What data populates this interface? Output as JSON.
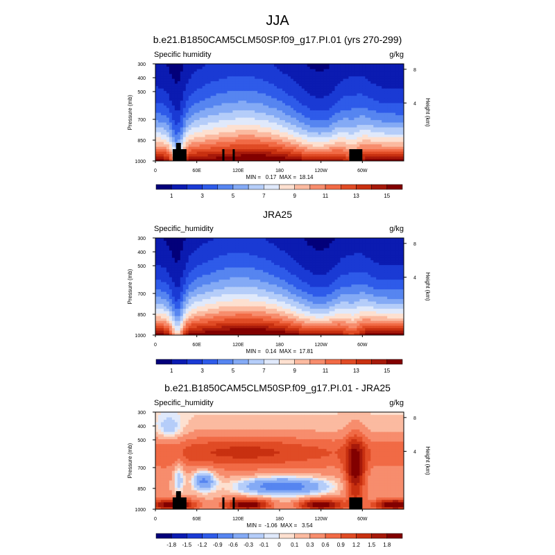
{
  "figure_title": "JJA",
  "chart_data": [
    {
      "type": "heatmap",
      "panel": "model",
      "title": "b.e21.B1850CAM5CLM50SP.f09_g17.PI.01 (yrs 270-299)",
      "left_label": "Specific humidity",
      "units": "g/kg",
      "xlabel": "",
      "ylabel": "Pressure (mb)",
      "y2label": "Height (km)",
      "x_ticks": [
        "0",
        "60E",
        "120E",
        "180",
        "120W",
        "60W"
      ],
      "x_tick_values": [
        0,
        60,
        120,
        180,
        240,
        300
      ],
      "xlim": [
        0,
        360
      ],
      "y_ticks": [
        "300",
        "400",
        "500",
        "700",
        "850",
        "1000"
      ],
      "y_tick_values": [
        300,
        400,
        500,
        700,
        850,
        1000
      ],
      "ylim": [
        1000,
        300
      ],
      "y2_ticks": [
        "8",
        "4"
      ],
      "y2_tick_values": [
        8,
        4
      ],
      "stats": "MIN =   0.17  MAX =  18.14",
      "min": 0.17,
      "max": 18.14,
      "colorbar_levels": [
        0,
        1,
        2,
        3,
        4,
        5,
        6,
        7,
        8,
        9,
        10,
        11,
        12,
        13,
        14,
        15,
        16
      ],
      "colorbar_labels": [
        "1",
        "3",
        "5",
        "7",
        "9",
        "11",
        "13",
        "15"
      ],
      "colorbar_colors": [
        "#03007a",
        "#0b1bb1",
        "#1a3ad4",
        "#2e5be9",
        "#5685f0",
        "#84aaf5",
        "#b5cdf9",
        "#e0e9fb",
        "#fde0d0",
        "#fbbaa0",
        "#f78d6d",
        "#f16a45",
        "#e04b25",
        "#c83010",
        "#a6190a",
        "#820000"
      ],
      "field_model": "abs",
      "topography": [
        [
          0,
          0,
          0
        ],
        [
          25,
          1000,
          0
        ],
        [
          30,
          920,
          1
        ],
        [
          33,
          870,
          1
        ],
        [
          38,
          920,
          1
        ],
        [
          45,
          1000,
          0
        ],
        [
          95,
          1000,
          0
        ],
        [
          97,
          920,
          0
        ],
        [
          99,
          1000,
          0
        ],
        [
          110,
          1000,
          0
        ],
        [
          112,
          920,
          0
        ],
        [
          114,
          1000,
          0
        ],
        [
          280,
          1000,
          0
        ],
        [
          282,
          920,
          0
        ],
        [
          298,
          920,
          0
        ],
        [
          300,
          1000,
          0
        ]
      ]
    },
    {
      "type": "heatmap",
      "panel": "obs",
      "title": "JRA25",
      "left_label": "Specific_humidity",
      "units": "g/kg",
      "xlabel": "",
      "ylabel": "Pressure (mb)",
      "y2label": "Height (km)",
      "x_ticks": [
        "0",
        "60E",
        "120E",
        "180",
        "120W",
        "60W"
      ],
      "x_tick_values": [
        0,
        60,
        120,
        180,
        240,
        300
      ],
      "xlim": [
        0,
        360
      ],
      "y_ticks": [
        "300",
        "400",
        "500",
        "700",
        "850",
        "1000"
      ],
      "y_tick_values": [
        300,
        400,
        500,
        700,
        850,
        1000
      ],
      "ylim": [
        1000,
        300
      ],
      "y2_ticks": [
        "8",
        "4"
      ],
      "y2_tick_values": [
        8,
        4
      ],
      "stats": "MIN =   0.14  MAX =  17.81",
      "min": 0.14,
      "max": 17.81,
      "colorbar_levels": [
        0,
        1,
        2,
        3,
        4,
        5,
        6,
        7,
        8,
        9,
        10,
        11,
        12,
        13,
        14,
        15,
        16
      ],
      "colorbar_labels": [
        "1",
        "3",
        "5",
        "7",
        "9",
        "11",
        "13",
        "15"
      ],
      "colorbar_colors": [
        "#03007a",
        "#0b1bb1",
        "#1a3ad4",
        "#2e5be9",
        "#5685f0",
        "#84aaf5",
        "#b5cdf9",
        "#e0e9fb",
        "#fde0d0",
        "#fbbaa0",
        "#f78d6d",
        "#f16a45",
        "#e04b25",
        "#c83010",
        "#a6190a",
        "#820000"
      ],
      "field_model": "abs_obs",
      "topography": []
    },
    {
      "type": "heatmap",
      "panel": "difference",
      "title": "b.e21.B1850CAM5CLM50SP.f09_g17.PI.01 - JRA25",
      "left_label": "Specific_humidity",
      "units": "g/kg",
      "xlabel": "",
      "ylabel": "Pressure (mb)",
      "y2label": "Height (km)",
      "x_ticks": [
        "0",
        "60E",
        "120E",
        "180",
        "120W",
        "60W"
      ],
      "x_tick_values": [
        0,
        60,
        120,
        180,
        240,
        300
      ],
      "xlim": [
        0,
        360
      ],
      "y_ticks": [
        "300",
        "400",
        "500",
        "700",
        "850",
        "1000"
      ],
      "y_tick_values": [
        300,
        400,
        500,
        700,
        850,
        1000
      ],
      "ylim": [
        1000,
        300
      ],
      "y2_ticks": [
        "8",
        "4"
      ],
      "y2_tick_values": [
        8,
        4
      ],
      "stats": "MIN =  -1.06  MAX =   3.54",
      "min": -1.06,
      "max": 3.54,
      "colorbar_levels": [
        -2.1,
        -1.8,
        -1.5,
        -1.2,
        -0.9,
        -0.6,
        -0.3,
        -0.1,
        0,
        0.1,
        0.3,
        0.6,
        0.9,
        1.2,
        1.5,
        1.8,
        2.1
      ],
      "colorbar_labels": [
        "-1.8",
        "-1.5",
        "-1.2",
        "-0.9",
        "-0.6",
        "-0.3",
        "-0.1",
        "0",
        "0.1",
        "0.3",
        "0.6",
        "0.9",
        "1.2",
        "1.5",
        "1.8"
      ],
      "colorbar_colors": [
        "#03007a",
        "#0b1bb1",
        "#1a3ad4",
        "#2e5be9",
        "#5685f0",
        "#84aaf5",
        "#b5cdf9",
        "#e0e9fb",
        "#fde0d0",
        "#fbbaa0",
        "#f78d6d",
        "#f16a45",
        "#e04b25",
        "#c83010",
        "#a6190a",
        "#820000"
      ],
      "field_model": "diff",
      "topography": [
        [
          0,
          0,
          0
        ],
        [
          25,
          1000,
          0
        ],
        [
          30,
          920,
          1
        ],
        [
          33,
          870,
          1
        ],
        [
          38,
          920,
          1
        ],
        [
          45,
          1000,
          0
        ],
        [
          95,
          1000,
          0
        ],
        [
          97,
          920,
          0
        ],
        [
          99,
          1000,
          0
        ],
        [
          110,
          1000,
          0
        ],
        [
          112,
          920,
          0
        ],
        [
          114,
          1000,
          0
        ],
        [
          280,
          1000,
          0
        ],
        [
          282,
          920,
          0
        ],
        [
          298,
          920,
          0
        ],
        [
          300,
          1000,
          0
        ]
      ]
    }
  ]
}
